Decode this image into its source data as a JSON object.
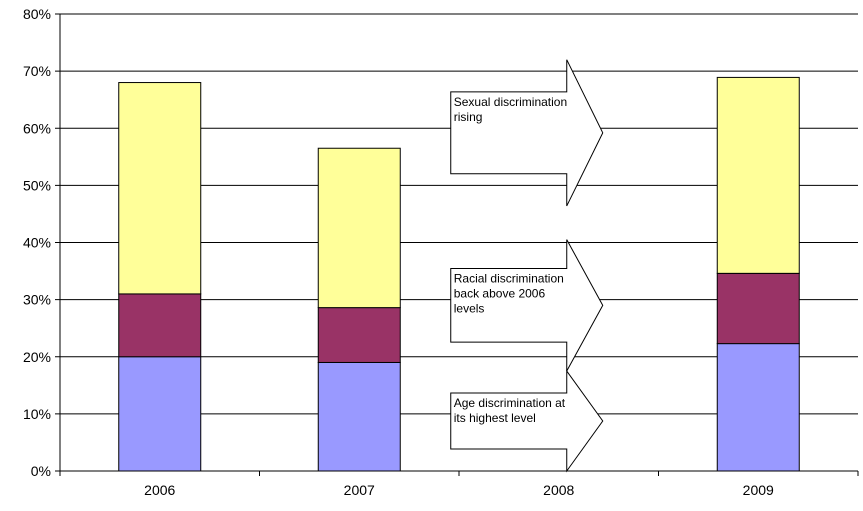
{
  "chart_data": {
    "type": "bar",
    "stacked": true,
    "title": "",
    "xlabel": "",
    "ylabel": "",
    "categories": [
      "2006",
      "2007",
      "2008",
      "2009"
    ],
    "ylim": [
      0,
      80
    ],
    "y_ticks": [
      "0%",
      "10%",
      "20%",
      "30%",
      "40%",
      "50%",
      "60%",
      "70%",
      "80%"
    ],
    "grid": true,
    "legend": "none",
    "series": [
      {
        "color": "#9999ff",
        "values": [
          20,
          19,
          null,
          22.3
        ]
      },
      {
        "color": "#993366",
        "values": [
          11,
          9.6,
          null,
          12.3
        ]
      },
      {
        "color": "#ffff99",
        "values": [
          37,
          27.9,
          null,
          34.3
        ]
      }
    ],
    "annotations": [
      {
        "lines": [
          "Sexual discrimination",
          "rising"
        ]
      },
      {
        "lines": [
          "Racial discrimination",
          "back above 2006",
          "levels"
        ]
      },
      {
        "lines": [
          "Age discrimination at",
          "its highest level"
        ]
      }
    ]
  }
}
